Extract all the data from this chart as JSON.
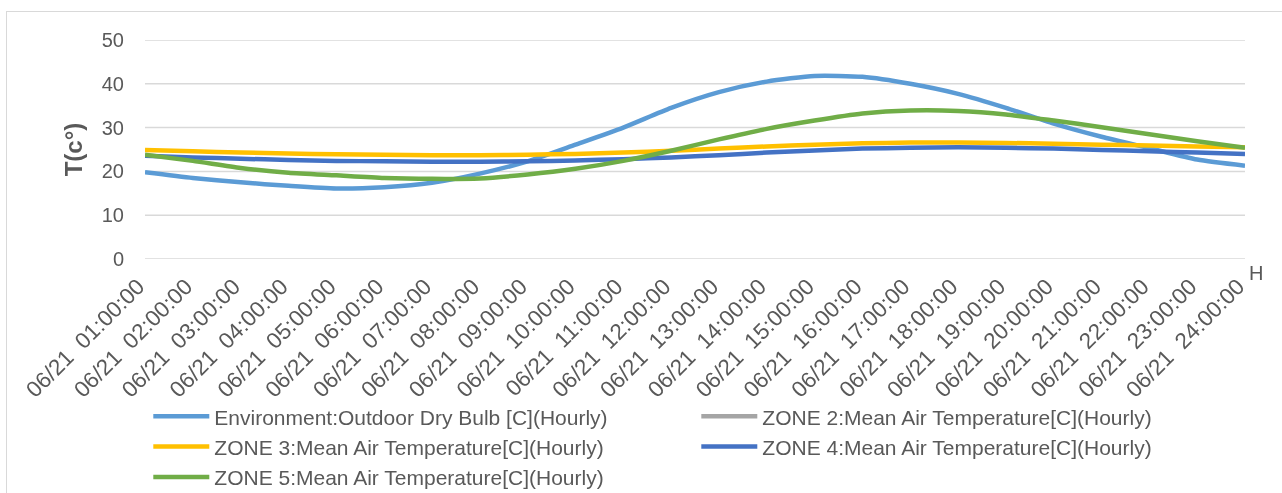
{
  "chart_data": {
    "type": "line",
    "ylabel": "T(c°)",
    "xlabel": "H",
    "categories": [
      "06/21  01:00:00",
      "06/21  02:00:00",
      "06/21  03:00:00",
      "06/21  04:00:00",
      "06/21  05:00:00",
      "06/21  06:00:00",
      "06/21  07:00:00",
      "06/21  08:00:00",
      "06/21  09:00:00",
      "06/21  10:00:00",
      "06/21  11:00:00",
      "06/21  12:00:00",
      "06/21  13:00:00",
      "06/21  14:00:00",
      "06/21  15:00:00",
      "06/21  16:00:00",
      "06/21  17:00:00",
      "06/21  18:00:00",
      "06/21  19:00:00",
      "06/21  20:00:00",
      "06/21  21:00:00",
      "06/21  22:00:00",
      "06/21  23:00:00",
      "06/21  24:00:00"
    ],
    "series": [
      {
        "name": "Environment:Outdoor Dry Bulb [C](Hourly)",
        "color": "#5b9bd5",
        "values": [
          19.8,
          18.5,
          17.5,
          16.7,
          16.1,
          16.4,
          17.4,
          19.5,
          22.3,
          26.1,
          30.0,
          34.5,
          38.1,
          40.5,
          41.8,
          41.6,
          40.0,
          37.7,
          34.5,
          30.9,
          27.9,
          25.3,
          22.7,
          21.3
        ]
      },
      {
        "name": "ZONE 2:Mean Air Temperature[C](Hourly)",
        "color": "#a5a5a5",
        "values": [
          null,
          null,
          null,
          null,
          null,
          null,
          null,
          null,
          null,
          null,
          null,
          null,
          null,
          null,
          null,
          null,
          null,
          null,
          null,
          null,
          null,
          null,
          null,
          null
        ]
      },
      {
        "name": "ZONE 3:Mean Air Temperature[C](Hourly)",
        "color": "#ffc000",
        "values": [
          24.9,
          24.6,
          24.3,
          24.1,
          23.9,
          23.8,
          23.7,
          23.7,
          23.8,
          24.0,
          24.3,
          24.7,
          25.2,
          25.7,
          26.1,
          26.4,
          26.6,
          26.6,
          26.5,
          26.3,
          26.1,
          25.9,
          25.7,
          25.5
        ]
      },
      {
        "name": "ZONE 4:Mean Air Temperature[C](Hourly)",
        "color": "#4472c4",
        "values": [
          23.6,
          23.2,
          22.9,
          22.6,
          22.4,
          22.3,
          22.2,
          22.2,
          22.3,
          22.5,
          22.8,
          23.2,
          23.7,
          24.3,
          24.8,
          25.2,
          25.4,
          25.5,
          25.4,
          25.2,
          24.9,
          24.6,
          24.3,
          24.0
        ]
      },
      {
        "name": "ZONE 5:Mean Air Temperature[C](Hourly)",
        "color": "#70ad47",
        "values": [
          23.8,
          22.4,
          20.8,
          19.7,
          19.1,
          18.5,
          18.3,
          18.4,
          19.3,
          20.6,
          22.4,
          24.7,
          27.3,
          29.7,
          31.6,
          33.2,
          33.9,
          33.8,
          33.0,
          31.6,
          30.1,
          28.5,
          26.9,
          25.4
        ]
      }
    ],
    "ylim": [
      0,
      50
    ],
    "yticks": [
      0,
      10,
      20,
      30,
      40,
      50
    ],
    "grid": "y",
    "legend": "bottom"
  }
}
